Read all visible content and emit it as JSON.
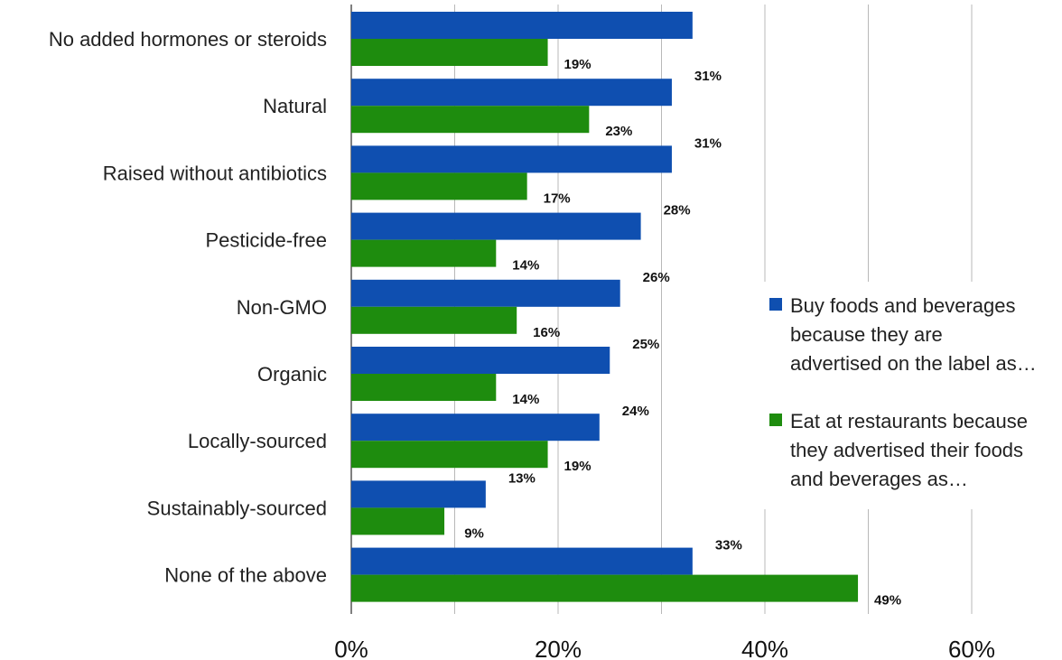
{
  "chart_data": {
    "type": "bar",
    "orientation": "horizontal",
    "categories": [
      "No added hormones or steroids",
      "Natural",
      "Raised without antibiotics",
      "Pesticide-free",
      "Non-GMO",
      "Organic",
      "Locally-sourced",
      "Sustainably-sourced",
      "None of the above"
    ],
    "series": [
      {
        "name": "Buy foods and beverages because they are advertised on the label as…",
        "name_lines": [
          "Buy foods and beverages",
          "because they are",
          "advertised on the label as…"
        ],
        "color": "#0F4FB0",
        "values": [
          33,
          31,
          31,
          28,
          26,
          25,
          24,
          13,
          33
        ],
        "labels": [
          "",
          "31%",
          "31%",
          "28%",
          "26%",
          "25%",
          "24%",
          "13%",
          "33%"
        ]
      },
      {
        "name": "Eat at restaurants because they advertised their foods and beverages as…",
        "name_lines": [
          "Eat at restaurants because",
          "they advertised their foods",
          "and beverages as…"
        ],
        "color": "#1E8C0E",
        "values": [
          19,
          23,
          17,
          14,
          16,
          14,
          19,
          9,
          49
        ],
        "labels": [
          "19%",
          "23%",
          "17%",
          "14%",
          "16%",
          "14%",
          "19%",
          "9%",
          "49%"
        ]
      }
    ],
    "xlim": [
      0,
      60
    ],
    "xticks": [
      "0%",
      "20%",
      "40%",
      "60%"
    ],
    "xtick_values": [
      0,
      20,
      40,
      60
    ],
    "gridlines": true,
    "legend_position": "right"
  }
}
